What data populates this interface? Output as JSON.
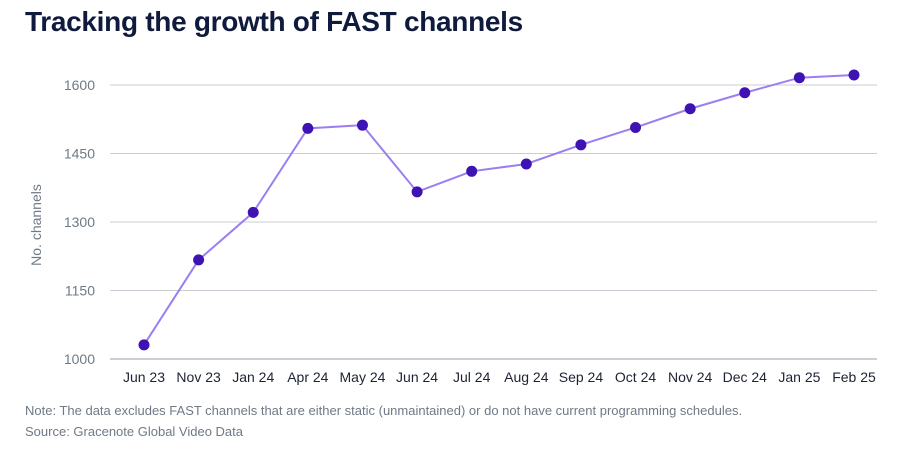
{
  "chart_data": {
    "type": "line",
    "title": "Tracking the growth of FAST channels",
    "ylabel": "No. channels",
    "xlabel": "",
    "categories": [
      "Jun 23",
      "Nov 23",
      "Jan 24",
      "Apr 24",
      "May 24",
      "Jun 24",
      "Jul 24",
      "Aug 24",
      "Sep 24",
      "Oct 24",
      "Nov 24",
      "Dec 24",
      "Jan 25",
      "Feb 25"
    ],
    "values": [
      1031,
      1217,
      1321,
      1505,
      1512,
      1366,
      1411,
      1427,
      1469,
      1507,
      1548,
      1583,
      1616,
      1622
    ],
    "yticks": [
      1000,
      1150,
      1300,
      1450,
      1600
    ],
    "ylim": [
      1000,
      1600
    ],
    "grid": true,
    "line_color": "#9b7ff0",
    "marker_color": "#3f12b3"
  },
  "note": "Note: The data excludes FAST channels that are either static (unmaintained) or do not have current programming schedules.",
  "source": "Source: Gracenote Global Video Data"
}
